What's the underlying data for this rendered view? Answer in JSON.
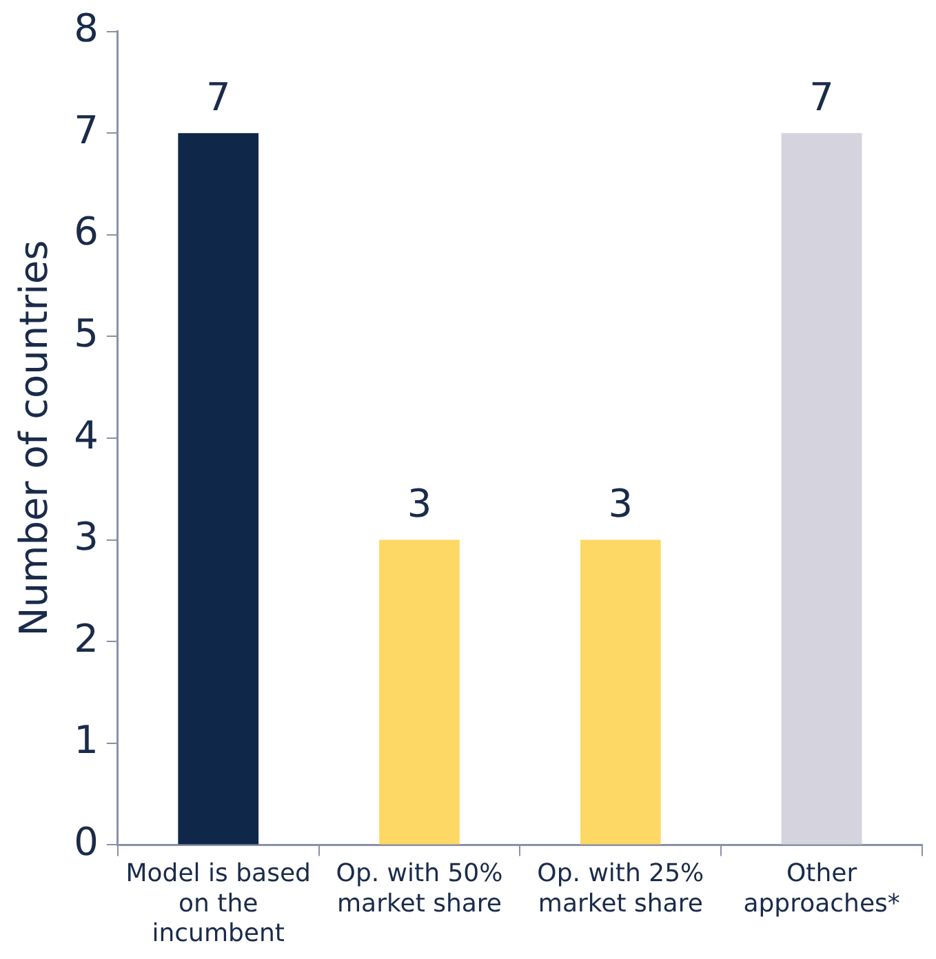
{
  "chart_data": {
    "type": "bar",
    "ylabel": "Number of countries",
    "categories": [
      "Model is based on the incumbent",
      "Op. with 50% market share",
      "Op. with 25% market share",
      "Other approaches*"
    ],
    "values": [
      7,
      3,
      3,
      7
    ],
    "colors": [
      "#0f2748",
      "#fdd865",
      "#fdd865",
      "#d4d3de"
    ],
    "ylim": [
      0,
      8
    ],
    "yticks": [
      0,
      1,
      2,
      3,
      4,
      5,
      6,
      7,
      8
    ],
    "grid": false,
    "legend": false,
    "data_labels": true
  }
}
